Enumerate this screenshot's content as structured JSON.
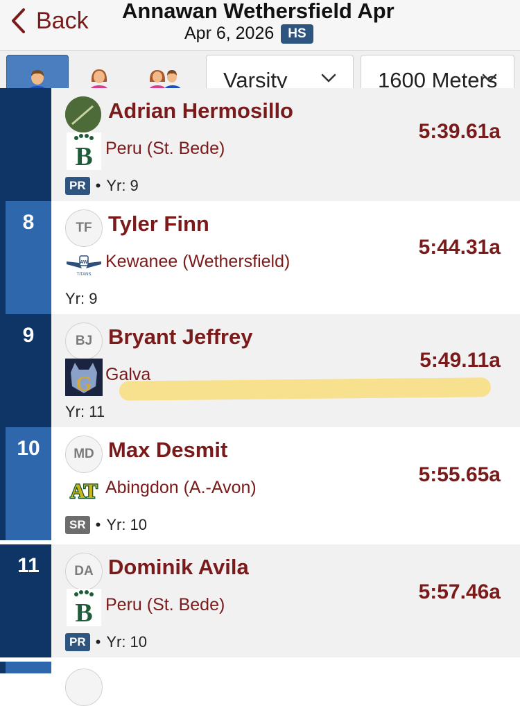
{
  "header": {
    "back_label": "Back",
    "title": "Annawan Wethersfield Apr",
    "date": "Apr 6, 2026",
    "level_badge": "HS"
  },
  "filters": {
    "gender_options": [
      "male-icon",
      "female-icon",
      "both-icon"
    ],
    "active_gender": "male",
    "division": "Varsity",
    "event": "1600 Meters"
  },
  "results": [
    {
      "place": "",
      "initials": "",
      "name": "Adrian Hermosillo",
      "school": "Peru (St. Bede)",
      "time": "5:39.61a",
      "badge": "PR",
      "year": "Yr: 9"
    },
    {
      "place": "8",
      "initials": "TF",
      "name": "Tyler Finn",
      "school": "Kewanee (Wethersfield)",
      "time": "5:44.31a",
      "badge": "",
      "year": "Yr: 9"
    },
    {
      "place": "9",
      "initials": "BJ",
      "name": "Bryant Jeffrey",
      "school": "Galva",
      "time": "5:49.11a",
      "badge": "",
      "year": "Yr: 11"
    },
    {
      "place": "10",
      "initials": "MD",
      "name": "Max Desmit",
      "school": "Abingdon (A.-Avon)",
      "time": "5:55.65a",
      "badge": "SR",
      "year": "Yr: 10"
    },
    {
      "place": "11",
      "initials": "DA",
      "name": "Dominik Avila",
      "school": "Peru (St. Bede)",
      "time": "5:57.46a",
      "badge": "PR",
      "year": "Yr: 10"
    }
  ],
  "colors": {
    "accent": "#7a1a1a",
    "navy": "#0f3466",
    "blue": "#2f67ad",
    "highlight": "#fad650"
  }
}
